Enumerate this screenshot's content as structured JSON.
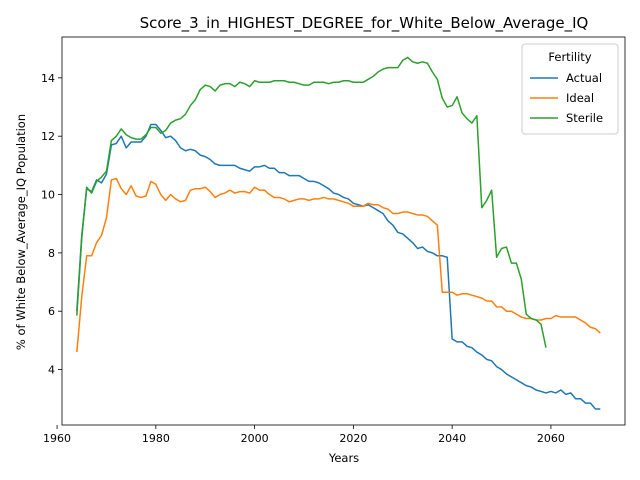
{
  "chart_data": {
    "type": "line",
    "title": "Score_3_in_HIGHEST_DEGREE_for_White_Below_Average_IQ",
    "xlabel": "Years",
    "ylabel": "% of White Below_Average_IQ Population",
    "xlim": [
      1961,
      2075
    ],
    "ylim": [
      2.1,
      15.4
    ],
    "xticks": [
      1960,
      1980,
      2000,
      2020,
      2040,
      2060
    ],
    "yticks": [
      4,
      6,
      8,
      10,
      12,
      14
    ],
    "grid": false,
    "legend": {
      "title": "Fertility",
      "placement": "top-right"
    },
    "series": [
      {
        "name": "Actual",
        "color": "#1f77b4",
        "points": [
          [
            1964,
            6.0
          ],
          [
            1965,
            8.6
          ],
          [
            1966,
            10.2
          ],
          [
            1967,
            10.1
          ],
          [
            1968,
            10.5
          ],
          [
            1969,
            10.4
          ],
          [
            1970,
            10.7
          ],
          [
            1971,
            11.7
          ],
          [
            1972,
            11.75
          ],
          [
            1973,
            12.0
          ],
          [
            1974,
            11.6
          ],
          [
            1975,
            11.8
          ],
          [
            1976,
            11.8
          ],
          [
            1977,
            11.8
          ],
          [
            1978,
            12.0
          ],
          [
            1979,
            12.4
          ],
          [
            1980,
            12.4
          ],
          [
            1981,
            12.2
          ],
          [
            1982,
            11.95
          ],
          [
            1983,
            12.0
          ],
          [
            1984,
            11.85
          ],
          [
            1985,
            11.6
          ],
          [
            1986,
            11.5
          ],
          [
            1987,
            11.55
          ],
          [
            1988,
            11.5
          ],
          [
            1989,
            11.35
          ],
          [
            1990,
            11.3
          ],
          [
            1991,
            11.2
          ],
          [
            1992,
            11.05
          ],
          [
            1993,
            11.0
          ],
          [
            1994,
            11.0
          ],
          [
            1995,
            11.0
          ],
          [
            1996,
            11.0
          ],
          [
            1997,
            10.9
          ],
          [
            1998,
            10.85
          ],
          [
            1999,
            10.8
          ],
          [
            2000,
            10.95
          ],
          [
            2001,
            10.95
          ],
          [
            2002,
            11.0
          ],
          [
            2003,
            10.9
          ],
          [
            2004,
            10.9
          ],
          [
            2005,
            10.75
          ],
          [
            2006,
            10.75
          ],
          [
            2007,
            10.65
          ],
          [
            2008,
            10.65
          ],
          [
            2009,
            10.65
          ],
          [
            2010,
            10.55
          ],
          [
            2011,
            10.45
          ],
          [
            2012,
            10.45
          ],
          [
            2013,
            10.4
          ],
          [
            2014,
            10.3
          ],
          [
            2015,
            10.2
          ],
          [
            2016,
            10.05
          ],
          [
            2017,
            10.0
          ],
          [
            2018,
            9.9
          ],
          [
            2019,
            9.85
          ],
          [
            2020,
            9.7
          ],
          [
            2021,
            9.65
          ],
          [
            2022,
            9.6
          ],
          [
            2023,
            9.65
          ],
          [
            2024,
            9.55
          ],
          [
            2025,
            9.45
          ],
          [
            2026,
            9.35
          ],
          [
            2027,
            9.1
          ],
          [
            2028,
            8.95
          ],
          [
            2029,
            8.7
          ],
          [
            2030,
            8.65
          ],
          [
            2031,
            8.5
          ],
          [
            2032,
            8.35
          ],
          [
            2033,
            8.15
          ],
          [
            2034,
            8.2
          ],
          [
            2035,
            8.05
          ],
          [
            2036,
            8.0
          ],
          [
            2037,
            7.9
          ],
          [
            2038,
            7.9
          ],
          [
            2039,
            7.85
          ],
          [
            2040,
            5.05
          ],
          [
            2041,
            4.95
          ],
          [
            2042,
            4.95
          ],
          [
            2043,
            4.8
          ],
          [
            2044,
            4.75
          ],
          [
            2045,
            4.6
          ],
          [
            2046,
            4.5
          ],
          [
            2047,
            4.35
          ],
          [
            2048,
            4.3
          ],
          [
            2049,
            4.1
          ],
          [
            2050,
            4.0
          ],
          [
            2051,
            3.85
          ],
          [
            2052,
            3.75
          ],
          [
            2053,
            3.65
          ],
          [
            2054,
            3.55
          ],
          [
            2055,
            3.45
          ],
          [
            2056,
            3.4
          ],
          [
            2057,
            3.3
          ],
          [
            2058,
            3.25
          ],
          [
            2059,
            3.2
          ],
          [
            2060,
            3.25
          ],
          [
            2061,
            3.2
          ],
          [
            2062,
            3.3
          ],
          [
            2063,
            3.15
          ],
          [
            2064,
            3.2
          ],
          [
            2065,
            3.0
          ],
          [
            2066,
            3.0
          ],
          [
            2067,
            2.85
          ],
          [
            2068,
            2.85
          ],
          [
            2069,
            2.65
          ],
          [
            2070,
            2.65
          ]
        ]
      },
      {
        "name": "Ideal",
        "color": "#ff7f0e",
        "points": [
          [
            1964,
            4.6
          ],
          [
            1965,
            6.5
          ],
          [
            1966,
            7.9
          ],
          [
            1967,
            7.9
          ],
          [
            1968,
            8.35
          ],
          [
            1969,
            8.6
          ],
          [
            1970,
            9.2
          ],
          [
            1971,
            10.5
          ],
          [
            1972,
            10.55
          ],
          [
            1973,
            10.2
          ],
          [
            1974,
            10.0
          ],
          [
            1975,
            10.3
          ],
          [
            1976,
            9.95
          ],
          [
            1977,
            9.9
          ],
          [
            1978,
            9.95
          ],
          [
            1979,
            10.45
          ],
          [
            1980,
            10.35
          ],
          [
            1981,
            10.0
          ],
          [
            1982,
            9.8
          ],
          [
            1983,
            10.0
          ],
          [
            1984,
            9.85
          ],
          [
            1985,
            9.75
          ],
          [
            1986,
            9.8
          ],
          [
            1987,
            10.15
          ],
          [
            1988,
            10.2
          ],
          [
            1989,
            10.2
          ],
          [
            1990,
            10.25
          ],
          [
            1991,
            10.1
          ],
          [
            1992,
            9.9
          ],
          [
            1993,
            10.0
          ],
          [
            1994,
            10.05
          ],
          [
            1995,
            10.15
          ],
          [
            1996,
            10.05
          ],
          [
            1997,
            10.1
          ],
          [
            1998,
            10.1
          ],
          [
            1999,
            10.05
          ],
          [
            2000,
            10.25
          ],
          [
            2001,
            10.15
          ],
          [
            2002,
            10.15
          ],
          [
            2003,
            10.0
          ],
          [
            2004,
            9.9
          ],
          [
            2005,
            9.9
          ],
          [
            2006,
            9.85
          ],
          [
            2007,
            9.75
          ],
          [
            2008,
            9.8
          ],
          [
            2009,
            9.85
          ],
          [
            2010,
            9.85
          ],
          [
            2011,
            9.8
          ],
          [
            2012,
            9.85
          ],
          [
            2013,
            9.85
          ],
          [
            2014,
            9.9
          ],
          [
            2015,
            9.85
          ],
          [
            2016,
            9.85
          ],
          [
            2017,
            9.8
          ],
          [
            2018,
            9.75
          ],
          [
            2019,
            9.7
          ],
          [
            2020,
            9.6
          ],
          [
            2021,
            9.6
          ],
          [
            2022,
            9.6
          ],
          [
            2023,
            9.7
          ],
          [
            2024,
            9.65
          ],
          [
            2025,
            9.65
          ],
          [
            2026,
            9.55
          ],
          [
            2027,
            9.5
          ],
          [
            2028,
            9.35
          ],
          [
            2029,
            9.35
          ],
          [
            2030,
            9.4
          ],
          [
            2031,
            9.4
          ],
          [
            2032,
            9.35
          ],
          [
            2033,
            9.3
          ],
          [
            2034,
            9.3
          ],
          [
            2035,
            9.25
          ],
          [
            2036,
            9.1
          ],
          [
            2037,
            8.95
          ],
          [
            2038,
            6.65
          ],
          [
            2039,
            6.65
          ],
          [
            2040,
            6.65
          ],
          [
            2041,
            6.55
          ],
          [
            2042,
            6.6
          ],
          [
            2043,
            6.6
          ],
          [
            2044,
            6.55
          ],
          [
            2045,
            6.5
          ],
          [
            2046,
            6.45
          ],
          [
            2047,
            6.35
          ],
          [
            2048,
            6.35
          ],
          [
            2049,
            6.15
          ],
          [
            2050,
            6.15
          ],
          [
            2051,
            6.0
          ],
          [
            2052,
            6.0
          ],
          [
            2053,
            5.9
          ],
          [
            2054,
            5.8
          ],
          [
            2055,
            5.75
          ],
          [
            2056,
            5.75
          ],
          [
            2057,
            5.7
          ],
          [
            2058,
            5.7
          ],
          [
            2059,
            5.75
          ],
          [
            2060,
            5.75
          ],
          [
            2061,
            5.85
          ],
          [
            2062,
            5.8
          ],
          [
            2063,
            5.8
          ],
          [
            2064,
            5.8
          ],
          [
            2065,
            5.8
          ],
          [
            2066,
            5.7
          ],
          [
            2067,
            5.6
          ],
          [
            2068,
            5.45
          ],
          [
            2069,
            5.4
          ],
          [
            2070,
            5.25
          ]
        ]
      },
      {
        "name": "Sterile",
        "color": "#2ca02c",
        "points": [
          [
            1964,
            5.85
          ],
          [
            1965,
            8.5
          ],
          [
            1966,
            10.25
          ],
          [
            1967,
            10.05
          ],
          [
            1968,
            10.45
          ],
          [
            1969,
            10.6
          ],
          [
            1970,
            10.8
          ],
          [
            1971,
            11.85
          ],
          [
            1972,
            12.0
          ],
          [
            1973,
            12.25
          ],
          [
            1974,
            12.05
          ],
          [
            1975,
            11.95
          ],
          [
            1976,
            11.9
          ],
          [
            1977,
            11.9
          ],
          [
            1978,
            12.05
          ],
          [
            1979,
            12.3
          ],
          [
            1980,
            12.3
          ],
          [
            1981,
            12.1
          ],
          [
            1982,
            12.2
          ],
          [
            1983,
            12.45
          ],
          [
            1984,
            12.55
          ],
          [
            1985,
            12.6
          ],
          [
            1986,
            12.75
          ],
          [
            1987,
            13.05
          ],
          [
            1988,
            13.25
          ],
          [
            1989,
            13.6
          ],
          [
            1990,
            13.75
          ],
          [
            1991,
            13.7
          ],
          [
            1992,
            13.55
          ],
          [
            1993,
            13.75
          ],
          [
            1994,
            13.8
          ],
          [
            1995,
            13.8
          ],
          [
            1996,
            13.7
          ],
          [
            1997,
            13.85
          ],
          [
            1998,
            13.8
          ],
          [
            1999,
            13.7
          ],
          [
            2000,
            13.9
          ],
          [
            2001,
            13.85
          ],
          [
            2002,
            13.85
          ],
          [
            2003,
            13.85
          ],
          [
            2004,
            13.9
          ],
          [
            2005,
            13.9
          ],
          [
            2006,
            13.9
          ],
          [
            2007,
            13.85
          ],
          [
            2008,
            13.85
          ],
          [
            2009,
            13.8
          ],
          [
            2010,
            13.75
          ],
          [
            2011,
            13.75
          ],
          [
            2012,
            13.85
          ],
          [
            2013,
            13.85
          ],
          [
            2014,
            13.85
          ],
          [
            2015,
            13.8
          ],
          [
            2016,
            13.85
          ],
          [
            2017,
            13.85
          ],
          [
            2018,
            13.9
          ],
          [
            2019,
            13.9
          ],
          [
            2020,
            13.85
          ],
          [
            2021,
            13.85
          ],
          [
            2022,
            13.85
          ],
          [
            2023,
            13.95
          ],
          [
            2024,
            14.05
          ],
          [
            2025,
            14.2
          ],
          [
            2026,
            14.3
          ],
          [
            2027,
            14.35
          ],
          [
            2028,
            14.35
          ],
          [
            2029,
            14.35
          ],
          [
            2030,
            14.6
          ],
          [
            2031,
            14.7
          ],
          [
            2032,
            14.55
          ],
          [
            2033,
            14.5
          ],
          [
            2034,
            14.55
          ],
          [
            2035,
            14.5
          ],
          [
            2036,
            14.2
          ],
          [
            2037,
            13.95
          ],
          [
            2038,
            13.3
          ],
          [
            2039,
            13.0
          ],
          [
            2040,
            13.05
          ],
          [
            2041,
            13.35
          ],
          [
            2042,
            12.8
          ],
          [
            2043,
            12.6
          ],
          [
            2044,
            12.45
          ],
          [
            2045,
            12.7
          ],
          [
            2046,
            9.55
          ],
          [
            2047,
            9.8
          ],
          [
            2048,
            10.15
          ],
          [
            2049,
            7.85
          ],
          [
            2050,
            8.15
          ],
          [
            2051,
            8.2
          ],
          [
            2052,
            7.65
          ],
          [
            2053,
            7.65
          ],
          [
            2054,
            7.1
          ],
          [
            2055,
            5.9
          ],
          [
            2056,
            5.75
          ],
          [
            2057,
            5.7
          ],
          [
            2058,
            5.55
          ],
          [
            2059,
            4.75
          ]
        ]
      }
    ]
  }
}
